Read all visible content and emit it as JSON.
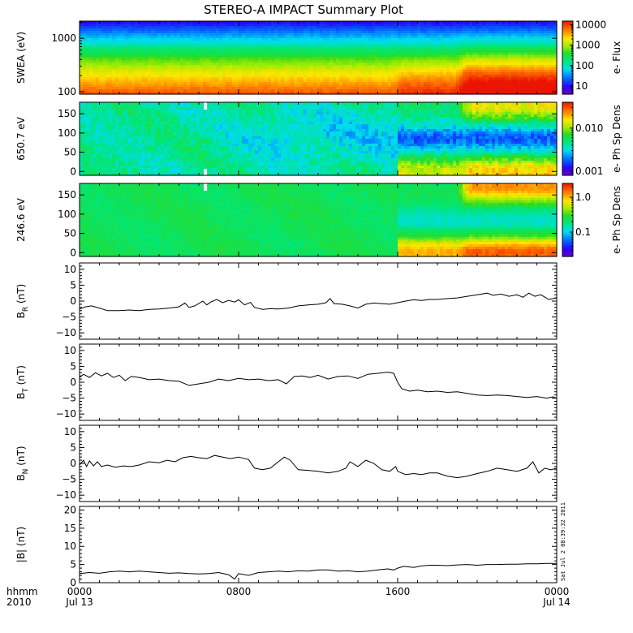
{
  "chart_data": {
    "type": "stacked-panels",
    "title": "STEREO-A IMPACT Summary Plot",
    "x_axis": {
      "corner_label_top": "hhmm",
      "corner_label_bottom": "2010",
      "range_hours": [
        0,
        24
      ],
      "ticks": [
        {
          "hour": 0,
          "label": "0000",
          "sublabel": "Jul 13"
        },
        {
          "hour": 8,
          "label": "0800",
          "sublabel": ""
        },
        {
          "hour": 16,
          "label": "1600",
          "sublabel": ""
        },
        {
          "hour": 24,
          "label": "0000",
          "sublabel": "Jul 14"
        }
      ],
      "minor_every_hours": 1
    },
    "timestamp": "Sat Jul  2 08:39:32 2011",
    "spectrograms": [
      {
        "id": "swea",
        "ylabel": "SWEA (eV)",
        "yscale": "log",
        "yrange": [
          90,
          2100
        ],
        "yticks": [
          {
            "v": 100,
            "label": "100"
          },
          {
            "v": 1000,
            "label": "1000"
          }
        ],
        "colorbar": {
          "label": "e- Flux",
          "scale": "log",
          "range": [
            4,
            15000
          ],
          "ticks": [
            {
              "v": 10,
              "label": "10"
            },
            {
              "v": 100,
              "label": "100"
            },
            {
              "v": 1000,
              "label": "1000"
            },
            {
              "v": 10000,
              "label": "10000"
            }
          ]
        }
      },
      {
        "id": "pad650",
        "ylabel": "650.7 eV",
        "yscale": "linear",
        "yrange": [
          -10,
          180
        ],
        "yticks": [
          {
            "v": 0,
            "label": "0"
          },
          {
            "v": 50,
            "label": "50"
          },
          {
            "v": 100,
            "label": "100"
          },
          {
            "v": 150,
            "label": "150"
          }
        ],
        "colorbar": {
          "label": "e- Ph Sp Dens",
          "scale": "log",
          "range": [
            0.0008,
            0.04
          ],
          "ticks": [
            {
              "v": 0.001,
              "label": "0.001"
            },
            {
              "v": 0.01,
              "label": "0.010"
            }
          ]
        }
      },
      {
        "id": "pad246",
        "ylabel": "246.6 eV",
        "yscale": "linear",
        "yrange": [
          -10,
          180
        ],
        "yticks": [
          {
            "v": 0,
            "label": "0"
          },
          {
            "v": 50,
            "label": "50"
          },
          {
            "v": 100,
            "label": "100"
          },
          {
            "v": 150,
            "label": "150"
          }
        ],
        "colorbar": {
          "label": "e- Ph Sp Dens",
          "scale": "log",
          "range": [
            0.02,
            2.5
          ],
          "ticks": [
            {
              "v": 0.1,
              "label": "0.1"
            },
            {
              "v": 1.0,
              "label": "1.0"
            }
          ]
        }
      }
    ],
    "line_panels": [
      {
        "id": "br",
        "ylabel_main": "B",
        "ylabel_sub": "R",
        "ylabel_unit": " (nT)",
        "yrange": [
          -12,
          12
        ],
        "yticks": [
          {
            "v": -10,
            "label": "−10"
          },
          {
            "v": -5,
            "label": "−5"
          },
          {
            "v": 0,
            "label": "0"
          },
          {
            "v": 5,
            "label": "5"
          },
          {
            "v": 10,
            "label": "10"
          }
        ],
        "series": [
          [
            0.0,
            -2.5
          ],
          [
            0.3,
            -1.8
          ],
          [
            0.6,
            -1.5
          ],
          [
            1.0,
            -2.2
          ],
          [
            1.4,
            -3.0
          ],
          [
            2.0,
            -3.0
          ],
          [
            2.5,
            -2.8
          ],
          [
            3.0,
            -3.0
          ],
          [
            3.5,
            -2.6
          ],
          [
            4.0,
            -2.5
          ],
          [
            4.5,
            -2.2
          ],
          [
            5.0,
            -1.8
          ],
          [
            5.3,
            -0.6
          ],
          [
            5.5,
            -2.0
          ],
          [
            5.8,
            -1.5
          ],
          [
            6.2,
            0.0
          ],
          [
            6.4,
            -1.2
          ],
          [
            6.6,
            -0.3
          ],
          [
            6.9,
            0.5
          ],
          [
            7.2,
            -0.5
          ],
          [
            7.5,
            0.2
          ],
          [
            7.8,
            -0.3
          ],
          [
            8.0,
            0.4
          ],
          [
            8.3,
            -1.2
          ],
          [
            8.6,
            -0.4
          ],
          [
            8.8,
            -2.0
          ],
          [
            9.2,
            -2.6
          ],
          [
            9.6,
            -2.4
          ],
          [
            10.0,
            -2.5
          ],
          [
            10.5,
            -2.2
          ],
          [
            11.0,
            -1.5
          ],
          [
            11.5,
            -1.2
          ],
          [
            12.0,
            -1.0
          ],
          [
            12.4,
            -0.5
          ],
          [
            12.6,
            0.8
          ],
          [
            12.8,
            -0.8
          ],
          [
            13.2,
            -1.0
          ],
          [
            13.6,
            -1.5
          ],
          [
            14.0,
            -2.2
          ],
          [
            14.4,
            -1.0
          ],
          [
            14.8,
            -0.6
          ],
          [
            15.2,
            -0.8
          ],
          [
            15.6,
            -1.0
          ],
          [
            16.0,
            -0.5
          ],
          [
            16.4,
            0.0
          ],
          [
            16.8,
            0.4
          ],
          [
            17.2,
            0.2
          ],
          [
            17.6,
            0.5
          ],
          [
            18.0,
            0.5
          ],
          [
            18.5,
            0.8
          ],
          [
            19.0,
            1.0
          ],
          [
            19.5,
            1.5
          ],
          [
            20.0,
            2.0
          ],
          [
            20.5,
            2.5
          ],
          [
            20.8,
            1.8
          ],
          [
            21.2,
            2.2
          ],
          [
            21.6,
            1.5
          ],
          [
            22.0,
            2.0
          ],
          [
            22.3,
            1.2
          ],
          [
            22.6,
            2.5
          ],
          [
            22.9,
            1.5
          ],
          [
            23.2,
            2.0
          ],
          [
            23.6,
            0.5
          ],
          [
            24.0,
            1.0
          ]
        ]
      },
      {
        "id": "bt",
        "ylabel_main": "B",
        "ylabel_sub": "T",
        "ylabel_unit": " (nT)",
        "yrange": [
          -12,
          12
        ],
        "yticks": [
          {
            "v": -10,
            "label": "−10"
          },
          {
            "v": -5,
            "label": "−5"
          },
          {
            "v": 0,
            "label": "0"
          },
          {
            "v": 5,
            "label": "5"
          },
          {
            "v": 10,
            "label": "10"
          }
        ],
        "series": [
          [
            0.0,
            1.5
          ],
          [
            0.2,
            2.5
          ],
          [
            0.5,
            1.5
          ],
          [
            0.8,
            3.0
          ],
          [
            1.1,
            2.0
          ],
          [
            1.4,
            2.8
          ],
          [
            1.7,
            1.5
          ],
          [
            2.0,
            2.2
          ],
          [
            2.3,
            0.5
          ],
          [
            2.6,
            1.8
          ],
          [
            3.0,
            1.5
          ],
          [
            3.5,
            0.8
          ],
          [
            4.0,
            1.0
          ],
          [
            4.5,
            0.5
          ],
          [
            5.0,
            0.3
          ],
          [
            5.5,
            -1.0
          ],
          [
            6.0,
            -0.5
          ],
          [
            6.5,
            0.0
          ],
          [
            7.0,
            1.0
          ],
          [
            7.5,
            0.5
          ],
          [
            8.0,
            1.2
          ],
          [
            8.5,
            0.8
          ],
          [
            9.0,
            1.0
          ],
          [
            9.5,
            0.5
          ],
          [
            10.0,
            0.8
          ],
          [
            10.4,
            -0.5
          ],
          [
            10.8,
            1.8
          ],
          [
            11.2,
            2.0
          ],
          [
            11.6,
            1.5
          ],
          [
            12.0,
            2.2
          ],
          [
            12.5,
            1.0
          ],
          [
            13.0,
            1.8
          ],
          [
            13.5,
            2.0
          ],
          [
            14.0,
            1.2
          ],
          [
            14.5,
            2.5
          ],
          [
            15.0,
            2.8
          ],
          [
            15.5,
            3.2
          ],
          [
            15.8,
            2.8
          ],
          [
            16.0,
            0.0
          ],
          [
            16.2,
            -2.0
          ],
          [
            16.6,
            -2.8
          ],
          [
            17.0,
            -2.5
          ],
          [
            17.5,
            -3.0
          ],
          [
            18.0,
            -2.8
          ],
          [
            18.5,
            -3.2
          ],
          [
            19.0,
            -3.0
          ],
          [
            19.5,
            -3.5
          ],
          [
            20.0,
            -4.0
          ],
          [
            20.5,
            -4.2
          ],
          [
            21.0,
            -4.0
          ],
          [
            21.5,
            -4.2
          ],
          [
            22.0,
            -4.5
          ],
          [
            22.5,
            -4.8
          ],
          [
            23.0,
            -4.5
          ],
          [
            23.5,
            -5.0
          ],
          [
            23.8,
            -4.6
          ],
          [
            24.0,
            -5.0
          ]
        ]
      },
      {
        "id": "bn",
        "ylabel_main": "B",
        "ylabel_sub": "N",
        "ylabel_unit": " (nT)",
        "yrange": [
          -12,
          12
        ],
        "yticks": [
          {
            "v": -10,
            "label": "−10"
          },
          {
            "v": -5,
            "label": "−5"
          },
          {
            "v": 0,
            "label": "0"
          },
          {
            "v": 5,
            "label": "5"
          },
          {
            "v": 10,
            "label": "10"
          }
        ],
        "series": [
          [
            0.0,
            -0.5
          ],
          [
            0.2,
            1.0
          ],
          [
            0.35,
            -1.0
          ],
          [
            0.5,
            0.8
          ],
          [
            0.7,
            -0.8
          ],
          [
            0.9,
            0.5
          ],
          [
            1.1,
            -1.0
          ],
          [
            1.4,
            -0.5
          ],
          [
            1.8,
            -1.2
          ],
          [
            2.2,
            -0.8
          ],
          [
            2.6,
            -1.0
          ],
          [
            3.0,
            -0.5
          ],
          [
            3.5,
            0.5
          ],
          [
            4.0,
            0.2
          ],
          [
            4.4,
            1.0
          ],
          [
            4.8,
            0.5
          ],
          [
            5.2,
            1.8
          ],
          [
            5.6,
            2.2
          ],
          [
            6.0,
            1.8
          ],
          [
            6.4,
            1.5
          ],
          [
            6.8,
            2.5
          ],
          [
            7.2,
            2.0
          ],
          [
            7.6,
            1.5
          ],
          [
            8.0,
            2.0
          ],
          [
            8.5,
            1.2
          ],
          [
            8.8,
            -1.5
          ],
          [
            9.2,
            -2.0
          ],
          [
            9.6,
            -1.5
          ],
          [
            10.0,
            0.5
          ],
          [
            10.3,
            2.0
          ],
          [
            10.6,
            1.0
          ],
          [
            11.0,
            -2.0
          ],
          [
            11.5,
            -2.2
          ],
          [
            12.0,
            -2.5
          ],
          [
            12.5,
            -3.0
          ],
          [
            13.0,
            -2.5
          ],
          [
            13.4,
            -1.5
          ],
          [
            13.6,
            0.5
          ],
          [
            14.0,
            -1.0
          ],
          [
            14.4,
            1.0
          ],
          [
            14.8,
            0.0
          ],
          [
            15.2,
            -2.0
          ],
          [
            15.6,
            -2.5
          ],
          [
            15.9,
            -1.0
          ],
          [
            16.0,
            -2.5
          ],
          [
            16.4,
            -3.5
          ],
          [
            16.8,
            -3.2
          ],
          [
            17.2,
            -3.5
          ],
          [
            17.6,
            -3.0
          ],
          [
            18.0,
            -3.0
          ],
          [
            18.5,
            -4.0
          ],
          [
            19.0,
            -4.5
          ],
          [
            19.5,
            -4.0
          ],
          [
            20.0,
            -3.2
          ],
          [
            20.5,
            -2.5
          ],
          [
            21.0,
            -1.5
          ],
          [
            21.5,
            -2.0
          ],
          [
            22.0,
            -2.5
          ],
          [
            22.5,
            -1.5
          ],
          [
            22.8,
            0.5
          ],
          [
            23.1,
            -3.0
          ],
          [
            23.4,
            -1.5
          ],
          [
            23.7,
            -2.0
          ],
          [
            24.0,
            -1.5
          ]
        ]
      },
      {
        "id": "bmag",
        "ylabel_main": "|B|",
        "ylabel_sub": "",
        "ylabel_unit": " (nT)",
        "yrange": [
          0,
          21
        ],
        "yticks": [
          {
            "v": 0,
            "label": "0"
          },
          {
            "v": 5,
            "label": "5"
          },
          {
            "v": 10,
            "label": "10"
          },
          {
            "v": 15,
            "label": "15"
          },
          {
            "v": 20,
            "label": "20"
          }
        ],
        "series": [
          [
            0.0,
            2.5
          ],
          [
            0.5,
            2.8
          ],
          [
            1.0,
            2.6
          ],
          [
            1.5,
            3.0
          ],
          [
            2.0,
            3.2
          ],
          [
            2.5,
            3.0
          ],
          [
            3.0,
            3.2
          ],
          [
            3.5,
            3.0
          ],
          [
            4.0,
            2.8
          ],
          [
            4.5,
            2.6
          ],
          [
            5.0,
            2.7
          ],
          [
            5.5,
            2.5
          ],
          [
            6.0,
            2.4
          ],
          [
            6.5,
            2.5
          ],
          [
            7.0,
            2.8
          ],
          [
            7.5,
            2.2
          ],
          [
            7.8,
            1.0
          ],
          [
            8.0,
            2.5
          ],
          [
            8.5,
            2.0
          ],
          [
            9.0,
            2.8
          ],
          [
            9.5,
            3.0
          ],
          [
            10.0,
            3.2
          ],
          [
            10.5,
            3.0
          ],
          [
            11.0,
            3.3
          ],
          [
            11.5,
            3.2
          ],
          [
            12.0,
            3.5
          ],
          [
            12.5,
            3.5
          ],
          [
            13.0,
            3.2
          ],
          [
            13.5,
            3.3
          ],
          [
            14.0,
            3.0
          ],
          [
            14.5,
            3.2
          ],
          [
            15.0,
            3.5
          ],
          [
            15.5,
            3.8
          ],
          [
            15.8,
            3.5
          ],
          [
            16.0,
            4.0
          ],
          [
            16.3,
            4.5
          ],
          [
            16.8,
            4.2
          ],
          [
            17.2,
            4.6
          ],
          [
            17.6,
            4.8
          ],
          [
            18.0,
            4.8
          ],
          [
            18.5,
            4.7
          ],
          [
            19.0,
            4.9
          ],
          [
            19.5,
            5.0
          ],
          [
            20.0,
            4.8
          ],
          [
            20.5,
            5.0
          ],
          [
            21.0,
            5.0
          ],
          [
            21.5,
            5.1
          ],
          [
            22.0,
            5.1
          ],
          [
            22.5,
            5.2
          ],
          [
            23.0,
            5.2
          ],
          [
            23.5,
            5.3
          ],
          [
            24.0,
            5.3
          ]
        ]
      }
    ]
  }
}
